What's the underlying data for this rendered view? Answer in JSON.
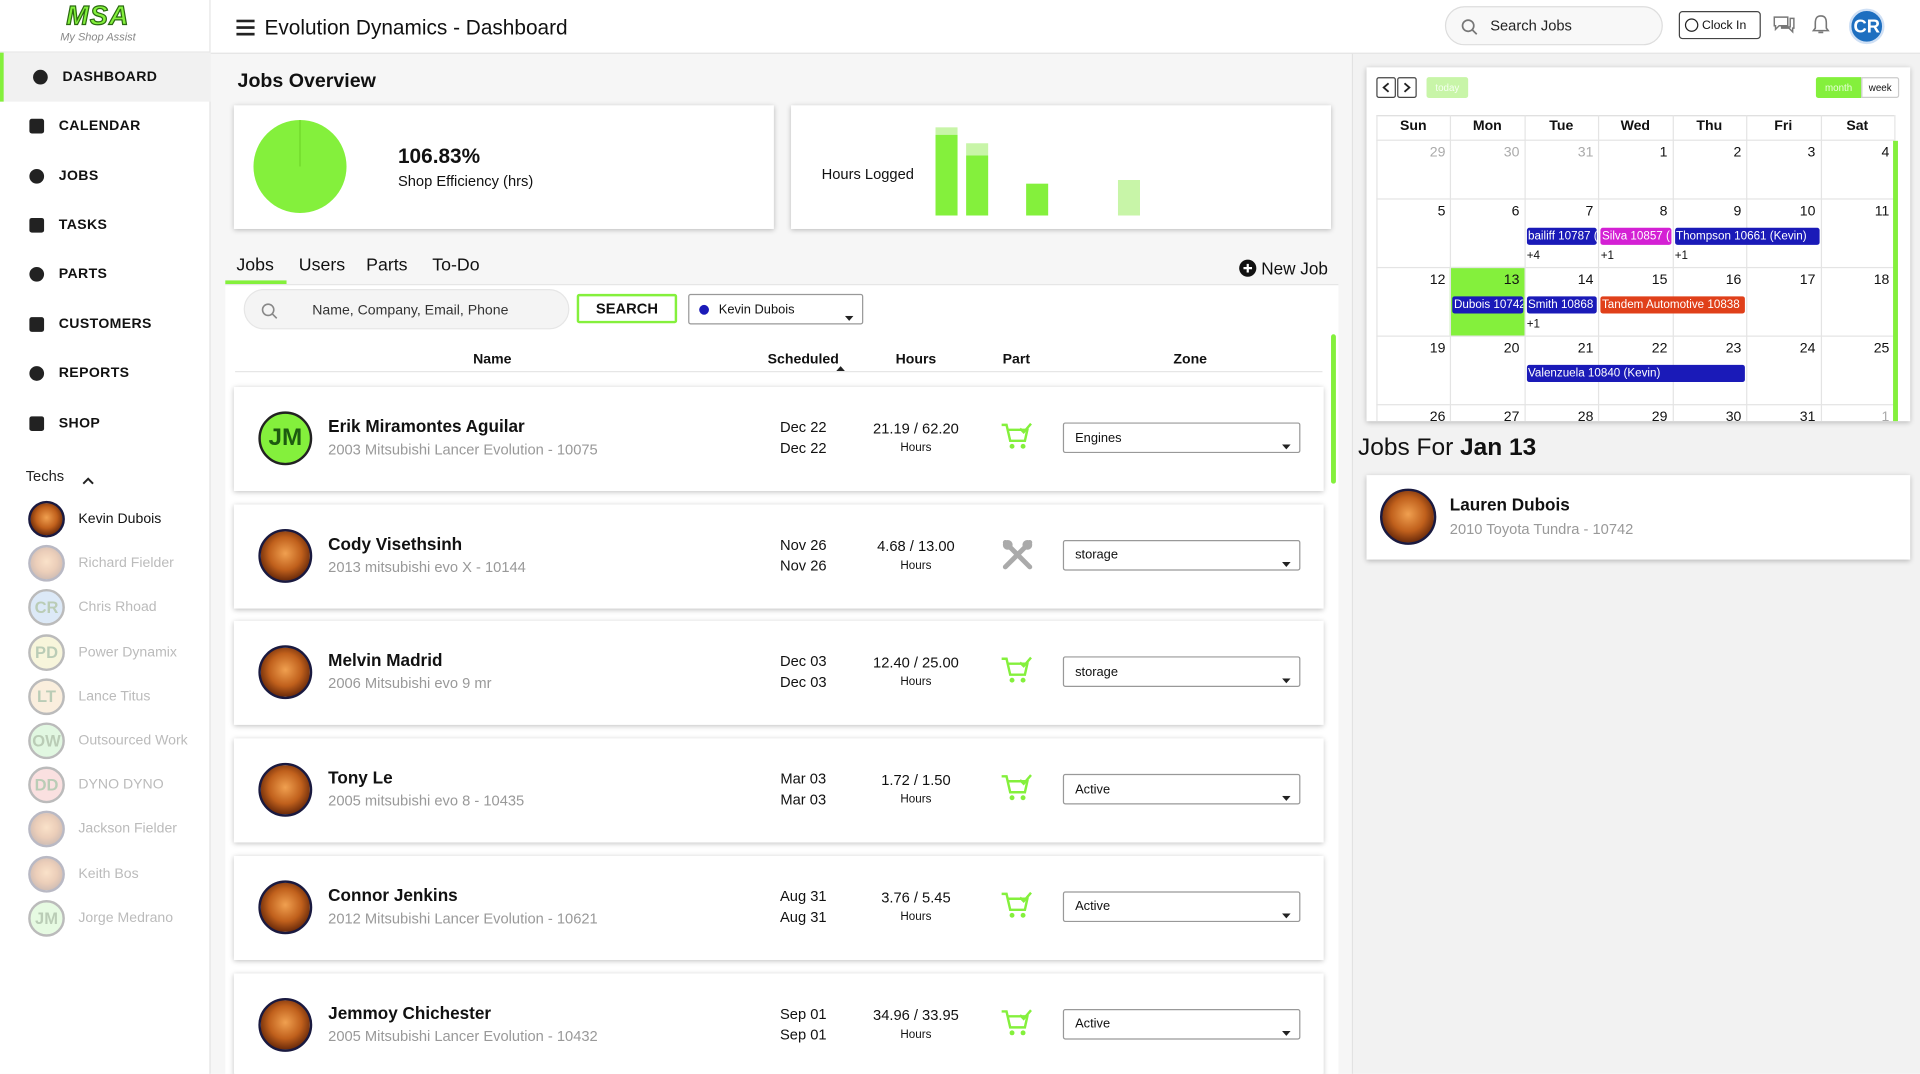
{
  "header": {
    "logo": "MSA",
    "logo_sub": "My Shop Assist",
    "title": "Evolution Dynamics - Dashboard",
    "search": "Search Jobs",
    "clock_in": "Clock In",
    "avatar": "CR"
  },
  "nav": [
    "DASHBOARD",
    "CALENDAR",
    "JOBS",
    "TASKS",
    "PARTS",
    "CUSTOMERS",
    "REPORTS",
    "SHOP"
  ],
  "techs": {
    "label": "Techs",
    "list": [
      {
        "name": "Kevin Dubois"
      },
      {
        "name": "Richard Fielder"
      },
      {
        "name": "Chris Rhoad",
        "initials": "CR"
      },
      {
        "name": "Power Dynamix",
        "initials": "PD"
      },
      {
        "name": "Lance Titus",
        "initials": "LT"
      },
      {
        "name": "Outsourced Work",
        "initials": "OW"
      },
      {
        "name": "DYNO DYNO",
        "initials": "DD"
      },
      {
        "name": "Jackson Fielder"
      },
      {
        "name": "Keith Bos"
      },
      {
        "name": "Jorge Medrano",
        "initials": "JM"
      }
    ]
  },
  "overview": {
    "title": "Jobs Overview",
    "efficiency": "106.83%",
    "efficiency_label": "Shop Efficiency (hrs)",
    "hours_label": "Hours Logged",
    "hours_chart": {
      "logged": [
        66,
        49,
        26,
        0
      ],
      "extra": [
        6,
        10,
        0,
        29
      ]
    }
  },
  "tabs": [
    "Jobs",
    "Users",
    "Parts",
    "To-Do"
  ],
  "new_job": "New Job",
  "search": {
    "placeholder": "Name, Company, Email, Phone",
    "button": "SEARCH",
    "filter": "Kevin Dubois"
  },
  "jobs": {
    "columns": [
      "Name",
      "Scheduled",
      "Hours",
      "Part",
      "Zone"
    ],
    "rows": [
      {
        "initials": "JM",
        "name": "Erik Miramontes Aguilar",
        "vehicle": "2003 Mitsubishi Lancer Evolution - 10075",
        "start": "Dec 22",
        "end": "Dec 22",
        "hours": "21.19 / 62.20",
        "unit": "Hours",
        "part": "cart",
        "zone": "Engines"
      },
      {
        "name": "Cody Visethsinh",
        "vehicle": "2013 mitsubishi evo X - 10144",
        "start": "Nov 26",
        "end": "Nov 26",
        "hours": "4.68 / 13.00",
        "unit": "Hours",
        "part": "tools",
        "zone": "storage"
      },
      {
        "name": "Melvin Madrid",
        "vehicle": "2006 Mitsubishi evo 9 mr",
        "start": "Dec 03",
        "end": "Dec 03",
        "hours": "12.40 / 25.00",
        "unit": "Hours",
        "part": "cart",
        "zone": "storage"
      },
      {
        "name": "Tony Le",
        "vehicle": "2005 mitsubishi evo 8 - 10435",
        "start": "Mar 03",
        "end": "Mar 03",
        "hours": "1.72 / 1.50",
        "unit": "Hours",
        "part": "cart",
        "zone": "Active"
      },
      {
        "name": "Connor Jenkins",
        "vehicle": "2012 Mitsubishi Lancer Evolution - 10621",
        "start": "Aug 31",
        "end": "Aug 31",
        "hours": "3.76 / 5.45",
        "unit": "Hours",
        "part": "cart",
        "zone": "Active"
      },
      {
        "name": "Jemmoy Chichester",
        "vehicle": "2005 Mitsubishi Lancer Evolution - 10432",
        "start": "Sep 01",
        "end": "Sep 01",
        "hours": "34.96 / 33.95",
        "unit": "Hours",
        "part": "cart",
        "zone": "Active"
      }
    ]
  },
  "calendar": {
    "today": "today",
    "month": "month",
    "week": "week",
    "days": [
      "Sun",
      "Mon",
      "Tue",
      "Wed",
      "Thu",
      "Fri",
      "Sat"
    ],
    "weeks": [
      [
        29,
        30,
        31,
        1,
        2,
        3,
        4
      ],
      [
        5,
        6,
        7,
        8,
        9,
        10,
        11
      ],
      [
        12,
        13,
        14,
        15,
        16,
        17,
        18
      ],
      [
        19,
        20,
        21,
        22,
        23,
        24,
        25
      ],
      [
        26,
        27,
        28,
        29,
        30,
        31,
        1
      ]
    ],
    "events": [
      {
        "label": "bailiff 10787 (",
        "week": 1,
        "day": 2,
        "span": 1,
        "color": "#1a1ab8"
      },
      {
        "label": "Silva 10857 (",
        "week": 1,
        "day": 3,
        "span": 1,
        "color": "#d420d4"
      },
      {
        "label": "Thompson 10661 (Kevin)",
        "week": 1,
        "day": 4,
        "span": 2,
        "color": "#1a1ab8"
      },
      {
        "label": "Dubois 10742",
        "week": 2,
        "day": 1,
        "span": 1,
        "color": "#1a1ab8"
      },
      {
        "label": "Smith 10868",
        "week": 2,
        "day": 2,
        "span": 1,
        "color": "#1a1ab8"
      },
      {
        "label": "Tandem Automotive 10838",
        "week": 2,
        "day": 3,
        "span": 2,
        "color": "#e0401a"
      },
      {
        "label": "Valenzuela 10840 (Kevin)",
        "week": 3,
        "day": 2,
        "span": 3,
        "color": "#1a1ab8"
      }
    ],
    "more": [
      {
        "label": "+4",
        "week": 1,
        "day": 2
      },
      {
        "label": "+1",
        "week": 1,
        "day": 3
      },
      {
        "label": "+1",
        "week": 1,
        "day": 4
      },
      {
        "label": "+1",
        "week": 2,
        "day": 2
      }
    ],
    "selected": {
      "week": 2,
      "day": 1
    }
  },
  "day_jobs": {
    "title": "Jobs For",
    "date": "Jan 13",
    "items": [
      {
        "name": "Lauren Dubois",
        "vehicle": "2010 Toyota Tundra - 10742"
      }
    ]
  }
}
